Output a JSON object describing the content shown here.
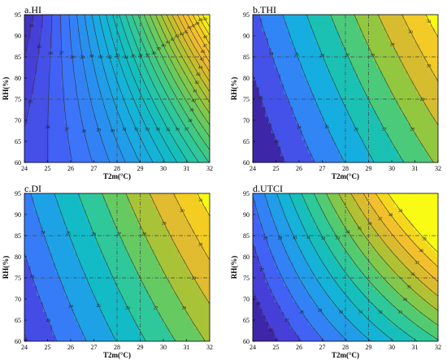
{
  "figure": {
    "panels": [
      {
        "id": "a",
        "title": "a.HI"
      },
      {
        "id": "b",
        "title": "b.THI"
      },
      {
        "id": "c",
        "title": "c.DI"
      },
      {
        "id": "d",
        "title": "d.UTCI"
      }
    ]
  },
  "colors": {
    "colormap": [
      "#3e26a8",
      "#4743e0",
      "#3f6ffc",
      "#2a90f0",
      "#16aee0",
      "#12bec0",
      "#2ec89a",
      "#59cb6a",
      "#93c73f",
      "#c8bd2c",
      "#f2b933",
      "#f4d21f",
      "#f9fb15"
    ],
    "contour_line": "#333333",
    "reference_line": "#444444"
  },
  "chart_data": [
    {
      "type": "contour",
      "title": "a.HI",
      "xlabel": "T2m(°C)",
      "ylabel": "RH(%)",
      "xlim": [
        24,
        32
      ],
      "ylim": [
        60,
        95
      ],
      "xticks": [
        24,
        25,
        26,
        27,
        28,
        29,
        30,
        31,
        32
      ],
      "yticks": [
        60,
        65,
        70,
        75,
        80,
        85,
        90,
        95
      ],
      "levels": [
        23,
        24,
        25,
        26,
        27,
        28,
        29,
        30,
        31,
        32,
        33,
        34,
        35,
        36,
        37,
        38,
        39,
        40,
        41,
        42,
        43,
        44,
        45,
        46,
        47,
        48,
        49,
        50
      ],
      "contour_labels": [
        "23",
        "24",
        "25",
        "26",
        "27",
        "28",
        "29",
        "30",
        "31",
        "32",
        "33",
        "34",
        "35",
        "36",
        "37",
        "38",
        "39",
        "40",
        "41",
        "42",
        "43",
        "44",
        "45",
        "46",
        "47",
        "48",
        "49",
        "50"
      ],
      "reference_lines": {
        "x": [
          28,
          29
        ],
        "y": [
          75,
          85
        ]
      },
      "field": "HI",
      "grid": false
    },
    {
      "type": "contour",
      "title": "b.THI",
      "xlabel": "T2m(°C)",
      "ylabel": "RH(%)",
      "xlim": [
        24,
        32
      ],
      "ylim": [
        60,
        95
      ],
      "xticks": [
        24,
        25,
        26,
        27,
        28,
        29,
        30,
        31,
        32
      ],
      "yticks": [
        60,
        65,
        70,
        75,
        80,
        85,
        90,
        95
      ],
      "levels": [
        23,
        24,
        25,
        26,
        27,
        28,
        29,
        30,
        31
      ],
      "contour_labels": [
        "23",
        "24",
        "25",
        "26",
        "27",
        "28",
        "29",
        "30",
        "31"
      ],
      "reference_lines": {
        "x": [
          28,
          29
        ],
        "y": [
          75,
          85
        ]
      },
      "field": "THI",
      "grid": false
    },
    {
      "type": "contour",
      "title": "c.DI",
      "xlabel": "T2m(°C)",
      "ylabel": "RH(%)",
      "xlim": [
        24,
        32
      ],
      "ylim": [
        60,
        95
      ],
      "xticks": [
        24,
        25,
        26,
        27,
        28,
        29,
        30,
        31,
        32
      ],
      "yticks": [
        60,
        65,
        70,
        75,
        80,
        85,
        90,
        95
      ],
      "levels": [
        22,
        23,
        24,
        25,
        26,
        27,
        28,
        29,
        30,
        31
      ],
      "contour_labels": [
        "22",
        "23",
        "24",
        "25",
        "26",
        "27",
        "28",
        "29",
        "30",
        "31"
      ],
      "reference_lines": {
        "x": [
          28,
          29
        ],
        "y": [
          75,
          85
        ]
      },
      "field": "DI",
      "grid": false
    },
    {
      "type": "contour",
      "title": "d.UTCI",
      "xlabel": "T2m(°C)",
      "ylabel": "RH(%)",
      "xlim": [
        24,
        32
      ],
      "ylim": [
        60,
        95
      ],
      "xticks": [
        24,
        25,
        26,
        27,
        28,
        29,
        30,
        31,
        32
      ],
      "yticks": [
        60,
        65,
        70,
        75,
        80,
        85,
        90,
        95
      ],
      "levels": [
        26,
        27,
        28,
        29,
        30,
        31,
        32,
        33,
        34,
        35,
        36,
        37,
        38,
        39
      ],
      "contour_labels": [
        "26",
        "27",
        "28",
        "29",
        "30",
        "31",
        "32",
        "33",
        "34",
        "35",
        "36",
        "37",
        "38",
        "39"
      ],
      "reference_lines": {
        "x": [
          28,
          29
        ],
        "y": [
          75,
          85
        ]
      },
      "field": "UTCI",
      "grid": false
    }
  ]
}
